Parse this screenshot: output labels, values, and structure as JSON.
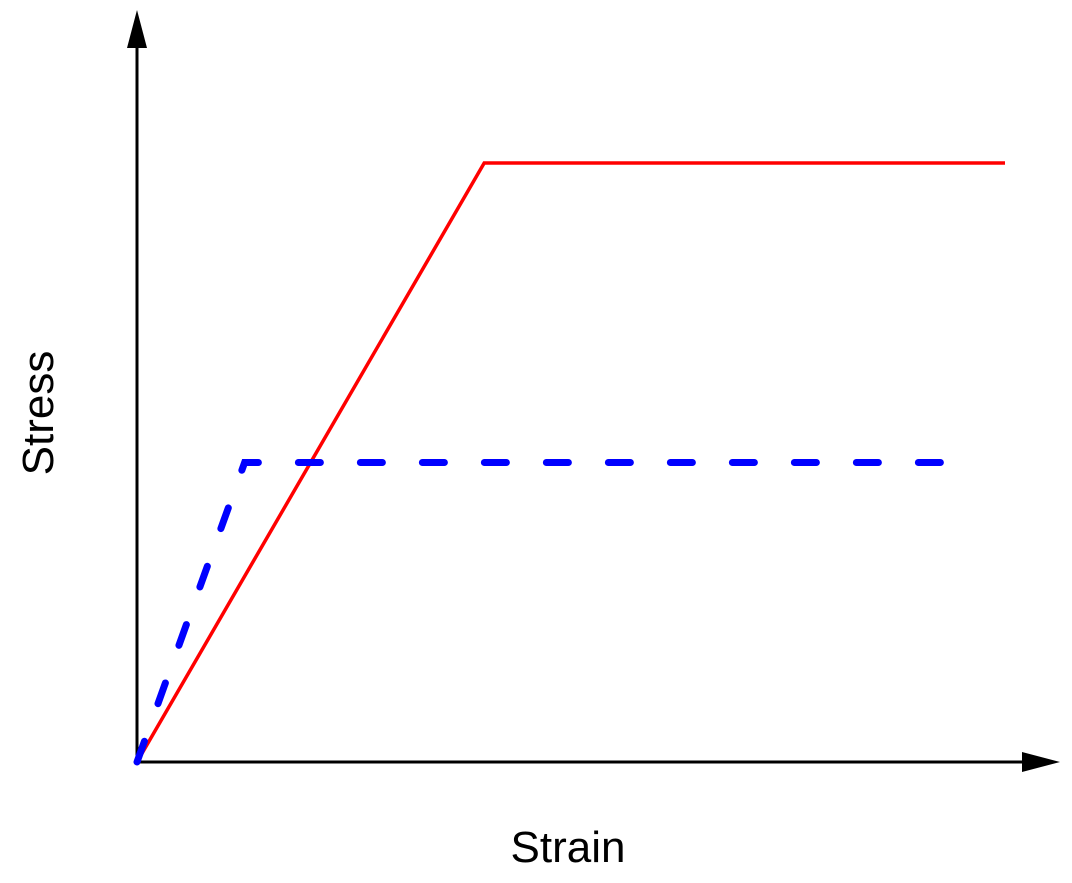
{
  "chart_data": {
    "type": "line",
    "xlabel": "Strain",
    "ylabel": "Stress",
    "xlim": [
      0,
      100
    ],
    "ylim": [
      0,
      100
    ],
    "series": [
      {
        "color": "#ff0000",
        "style": "solid",
        "x": [
          0,
          40,
          100
        ],
        "values": [
          0,
          100,
          100
        ]
      },
      {
        "color": "#0000ff",
        "style": "dashed",
        "x": [
          0,
          12.4,
          96
        ],
        "values": [
          0,
          50,
          50
        ]
      }
    ]
  }
}
